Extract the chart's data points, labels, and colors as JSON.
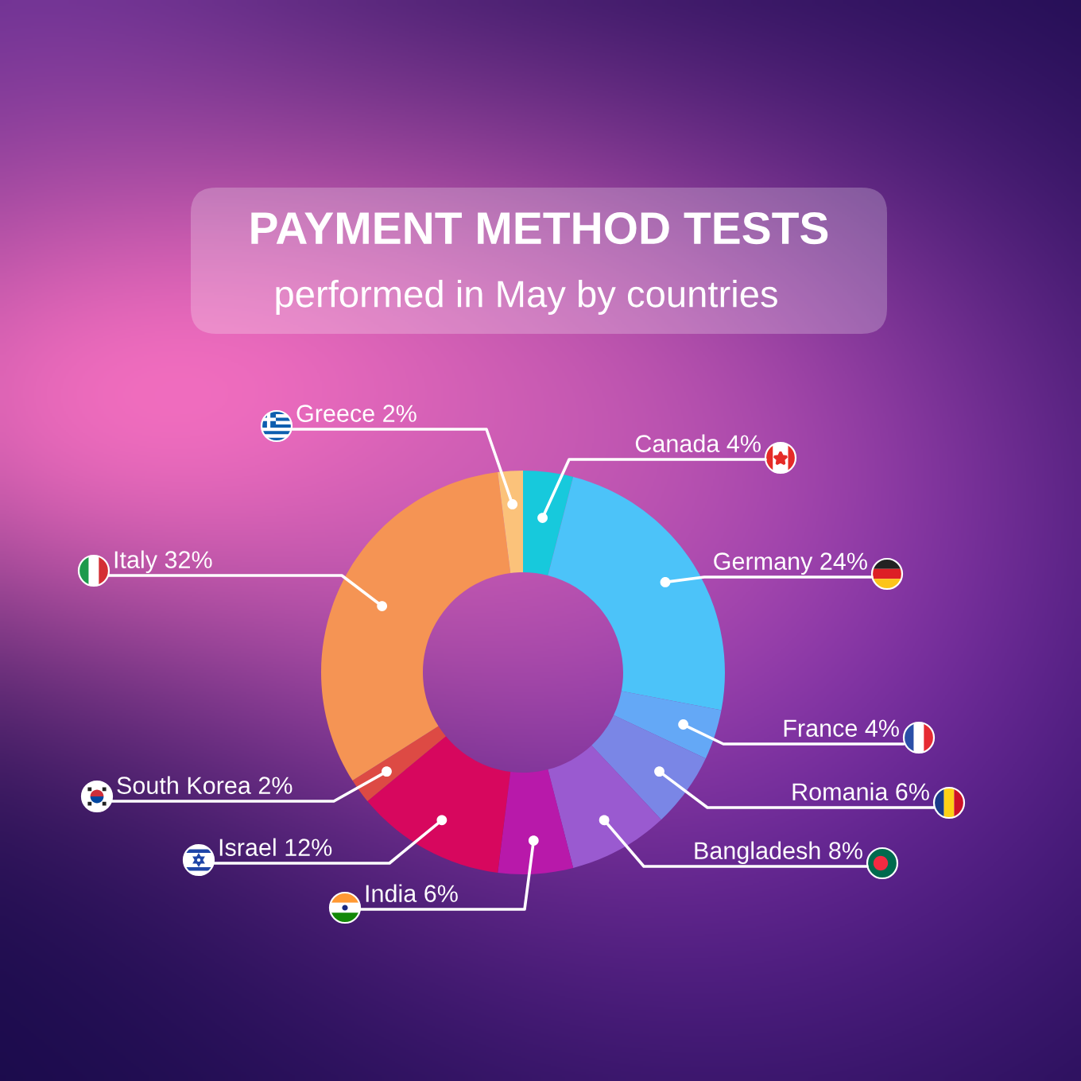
{
  "chart_data": {
    "type": "donut",
    "title": "PAYMENT METHOD TESTS",
    "subtitle": "performed in May by countries",
    "categories": [
      "Canada",
      "Germany",
      "France",
      "Romania",
      "Bangladesh",
      "India",
      "Israel",
      "South Korea",
      "Italy",
      "Greece"
    ],
    "values": [
      4,
      24,
      4,
      6,
      8,
      6,
      12,
      2,
      32,
      2
    ],
    "value_labels": [
      "4%",
      "24%",
      "4%",
      "6%",
      "8%",
      "6%",
      "12%",
      "2%",
      "32%",
      "2%"
    ],
    "colors": [
      "#17c9dc",
      "#4cc3f9",
      "#64a8f6",
      "#7a86e6",
      "#9a5ad0",
      "#b819aa",
      "#d7075e",
      "#dd4a44",
      "#f59454",
      "#fbc27a"
    ]
  }
}
